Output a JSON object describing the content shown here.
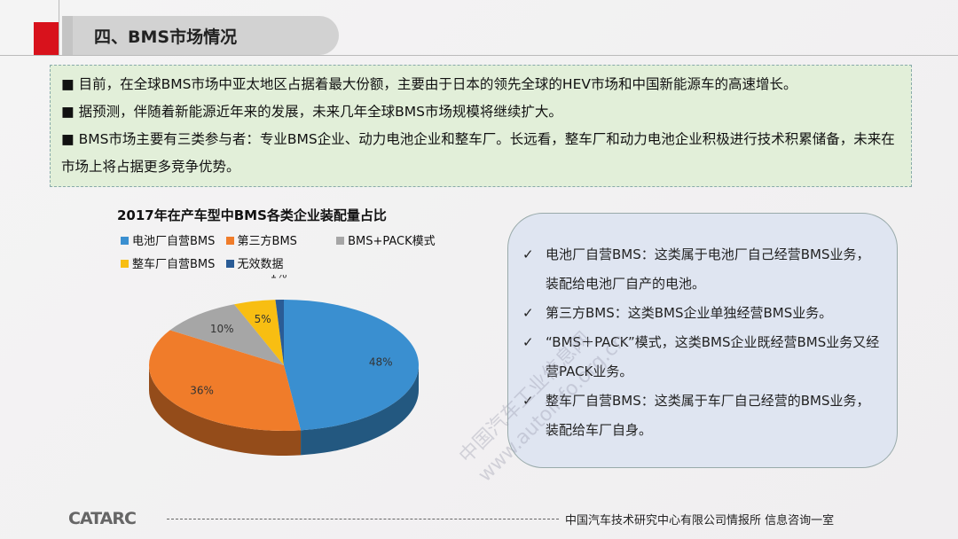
{
  "header": {
    "title": "四、BMS市场情况"
  },
  "intro": {
    "bullets": [
      "■ 目前，在全球BMS市场中亚太地区占据着最大份额，主要由于日本的领先全球的HEV市场和中国新能源车的高速增长。",
      "■ 据预测，伴随着新能源近年来的发展，未来几年全球BMS市场规模将继续扩大。",
      "■ BMS市场主要有三类参与者：专业BMS企业、动力电池企业和整车厂。长远看，整车厂和动力电池企业积极进行技术积累储备，未来在市场上将占据更多竞争优势。"
    ]
  },
  "chart_data": {
    "type": "pie",
    "title": "2017年在产车型中BMS各类企业装配量占比",
    "categories": [
      "电池厂自营BMS",
      "第三方BMS",
      "BMS+PACK模式",
      "整车厂自营BMS",
      "无效数据"
    ],
    "values": [
      48,
      36,
      10,
      5,
      1
    ],
    "labels": [
      "48%",
      "36%",
      "10%",
      "5%",
      "1%"
    ],
    "colors": [
      "#3a8fd0",
      "#f07c2a",
      "#a6a6a6",
      "#f8be12",
      "#2a5c96"
    ],
    "style": "3d",
    "legend_position": "top"
  },
  "definitions": {
    "check_icon": "check-icon",
    "items": [
      "电池厂自营BMS：这类属于电池厂自己经营BMS业务，装配给电池厂自产的电池。",
      "第三方BMS：这类BMS企业单独经营BMS业务。",
      "“BMS＋PACK”模式，这类BMS企业既经营BMS业务又经营PACK业务。",
      "整车厂自营BMS：这类属于车厂自己经营的BMS业务，装配给车厂自身。"
    ]
  },
  "watermark": {
    "line1": "中国汽车工业信息网",
    "line2": "www.autoinfo.org.cn"
  },
  "footer": {
    "logo": "CATARC",
    "text": "中国汽车技术研究中心有限公司情报所  信息咨询一室"
  },
  "colors": {
    "accent_red": "#d8121c",
    "intro_bg": "#e2efd9",
    "box_bg": "#dfe5f1"
  }
}
